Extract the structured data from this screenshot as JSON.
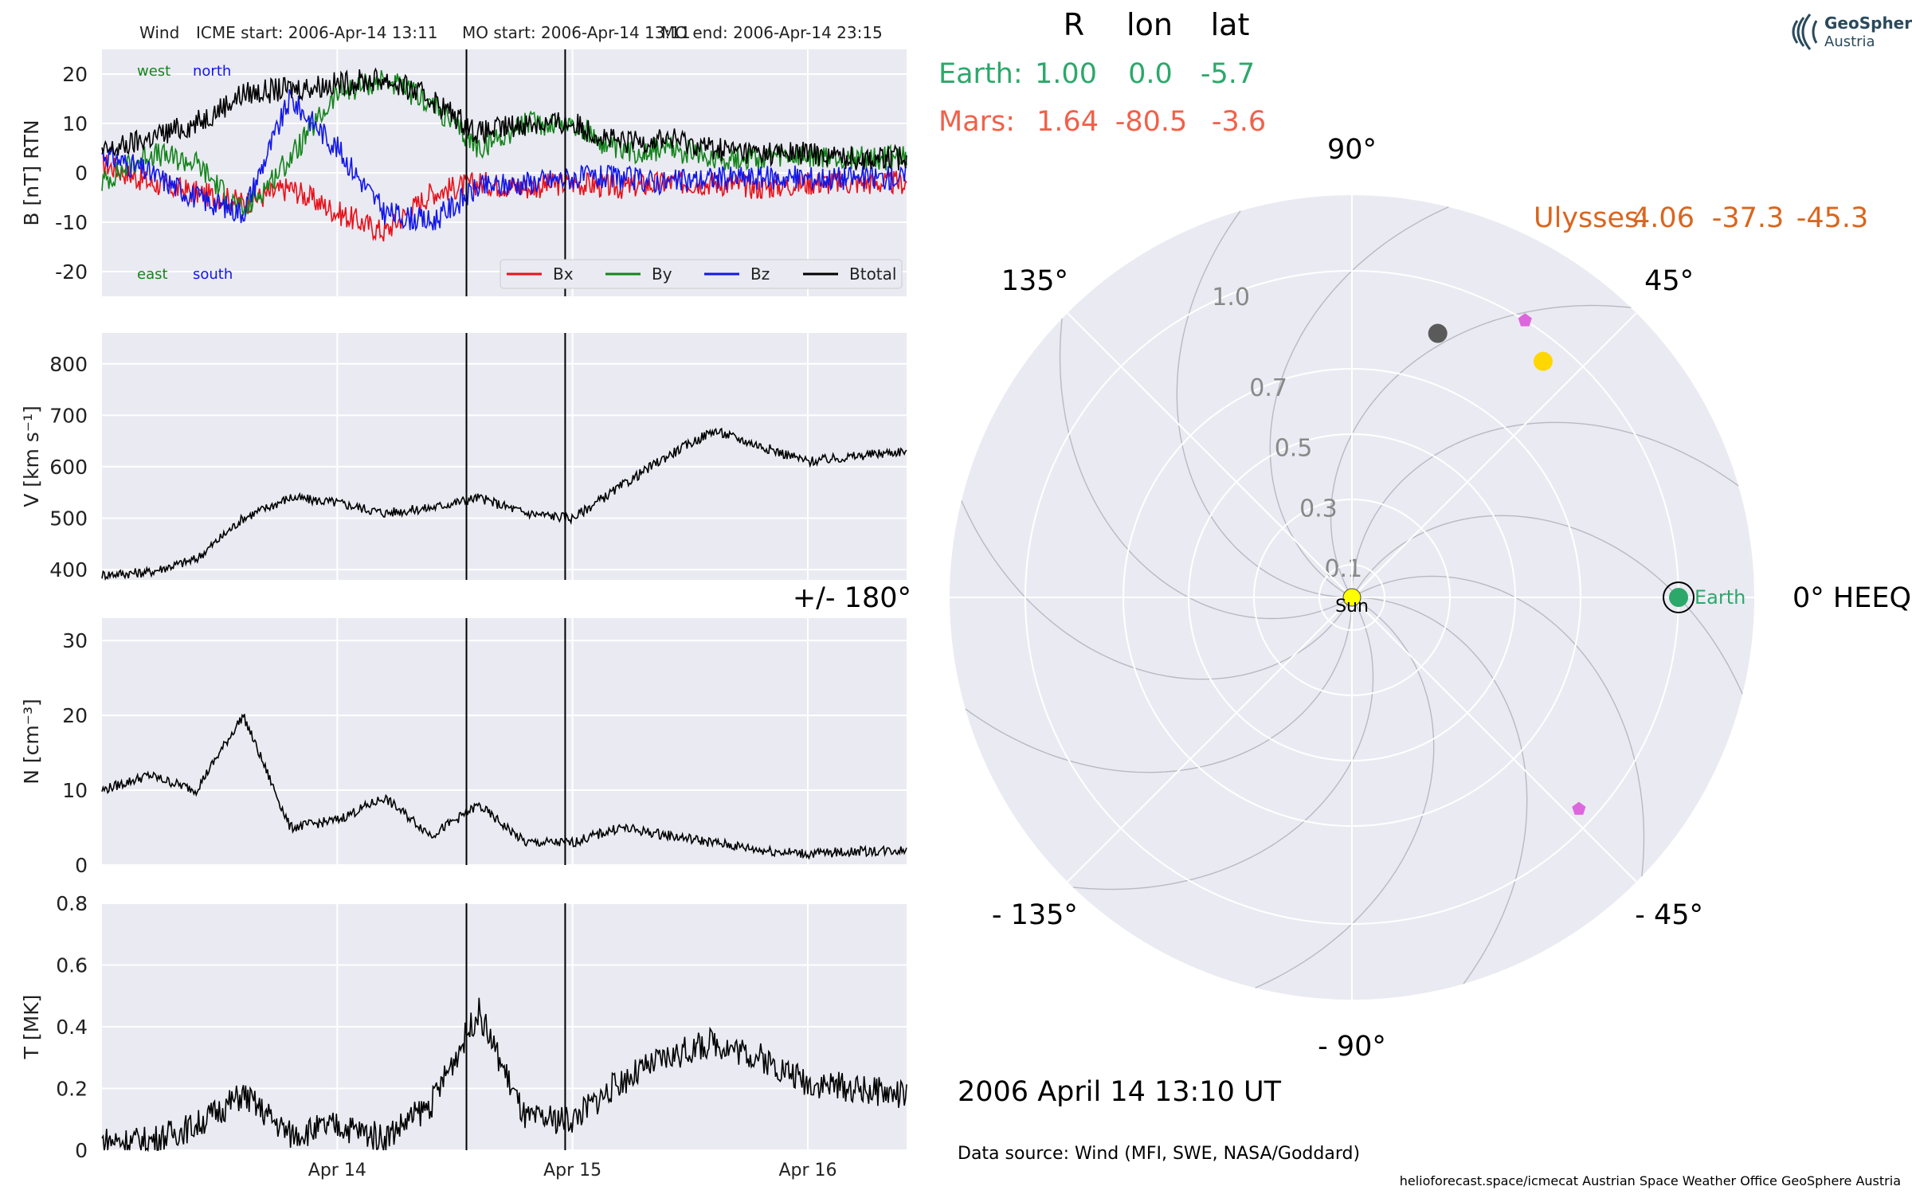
{
  "header": {
    "spacecraft": "Wind",
    "icme_start": "ICME start: 2006-Apr-14 13:11",
    "mo_start": "MO start: 2006-Apr-14 13:11",
    "mo_end": "MO end: 2006-Apr-14 23:15"
  },
  "positions": {
    "columns": [
      "R",
      "lon",
      "lat"
    ],
    "rows": [
      {
        "name": "Earth:",
        "R": "1.00",
        "lon": "0.0",
        "lat": "-5.7",
        "color": "#2ca86b"
      },
      {
        "name": "Mars:",
        "R": "1.64",
        "lon": "-80.5",
        "lat": "-3.6",
        "color": "#f0614a"
      }
    ],
    "ulysses": {
      "label": "Ulysses:",
      "R": "4.06",
      "lon": "-37.3",
      "lat": "-45.3",
      "color": "#d9661f"
    }
  },
  "logo": {
    "line1": "GeoSphere",
    "line2": "Austria"
  },
  "footer": {
    "datetime": "2006 April 14  13:10 UT",
    "data_source": "Data source: Wind (MFI, SWE, NASA/Goddard)",
    "credits": "helioforecast.space/icmecat   Austrian Space Weather Office   GeoSphere Austria"
  },
  "chart_data": [
    {
      "type": "line",
      "ylabel": "B [nT] RTN",
      "ylim": [
        -25,
        25
      ],
      "yticks": [
        -20,
        -10,
        0,
        10,
        20
      ],
      "xrange_days": [
        "2006-04-13 00:00",
        "2006-04-16 10:00"
      ],
      "xticks": [
        "Apr 14",
        "Apr 15",
        "Apr 16"
      ],
      "annotations": {
        "top_left": [
          "west",
          "north"
        ],
        "bottom_left": [
          "east",
          "south"
        ]
      },
      "legend": [
        "Bx",
        "By",
        "Bz",
        "Btotal"
      ],
      "series": [
        {
          "name": "Bx",
          "color": "#e8121b",
          "t": [
            0.0,
            0.2,
            0.4,
            0.6,
            0.8,
            1.0,
            1.2,
            1.4,
            1.6,
            1.8,
            2.0,
            2.2,
            2.4,
            2.6,
            2.8,
            3.0,
            3.2,
            3.4
          ],
          "values": [
            2,
            -2,
            -4,
            -6,
            -3,
            -8,
            -12,
            -4,
            -2,
            -3,
            -2,
            -3,
            -2,
            -2,
            -3,
            -2,
            -2,
            -2
          ]
        },
        {
          "name": "By",
          "color": "#13841b",
          "t": [
            0.0,
            0.2,
            0.4,
            0.6,
            0.8,
            1.0,
            1.2,
            1.4,
            1.6,
            1.8,
            2.0,
            2.2,
            2.4,
            2.6,
            2.8,
            3.0,
            3.2,
            3.4
          ],
          "values": [
            -2,
            4,
            2,
            -8,
            3,
            16,
            19,
            14,
            5,
            10,
            10,
            4,
            5,
            3,
            3,
            3,
            3,
            3
          ]
        },
        {
          "name": "Bz",
          "color": "#1217e8",
          "t": [
            0.0,
            0.2,
            0.4,
            0.6,
            0.8,
            1.0,
            1.2,
            1.4,
            1.6,
            1.8,
            2.0,
            2.2,
            2.4,
            2.6,
            2.8,
            3.0,
            3.2,
            3.4
          ],
          "values": [
            4,
            0,
            -5,
            -8,
            15,
            5,
            -8,
            -10,
            -3,
            -2,
            -1,
            -1,
            -2,
            -1,
            -1,
            -1,
            -1,
            -1
          ]
        },
        {
          "name": "Btotal",
          "color": "#000000",
          "t": [
            0.0,
            0.2,
            0.4,
            0.6,
            0.8,
            1.0,
            1.2,
            1.4,
            1.6,
            1.8,
            2.0,
            2.2,
            2.4,
            2.6,
            2.8,
            3.0,
            3.2,
            3.4
          ],
          "values": [
            4,
            7,
            10,
            16,
            17,
            18,
            19,
            15,
            8,
            10,
            10,
            6,
            7,
            5,
            4,
            4,
            3,
            3
          ]
        }
      ]
    },
    {
      "type": "line",
      "ylabel": "V [km s⁻¹]",
      "ylim": [
        380,
        860
      ],
      "yticks": [
        400,
        500,
        600,
        700,
        800
      ],
      "series": [
        {
          "name": "V",
          "color": "#000000",
          "t": [
            0.0,
            0.2,
            0.4,
            0.6,
            0.8,
            1.0,
            1.2,
            1.4,
            1.6,
            1.8,
            2.0,
            2.2,
            2.4,
            2.6,
            2.8,
            3.0,
            3.2,
            3.4
          ],
          "values": [
            390,
            395,
            420,
            500,
            540,
            530,
            510,
            520,
            540,
            510,
            500,
            560,
            620,
            670,
            640,
            610,
            620,
            630
          ]
        }
      ]
    },
    {
      "type": "line",
      "ylabel": "N [cm⁻³]",
      "ylim": [
        0,
        33
      ],
      "yticks": [
        0,
        10,
        20,
        30
      ],
      "series": [
        {
          "name": "N",
          "color": "#000000",
          "t": [
            0.0,
            0.2,
            0.4,
            0.6,
            0.8,
            1.0,
            1.2,
            1.4,
            1.6,
            1.8,
            2.0,
            2.2,
            2.4,
            2.6,
            2.8,
            3.0,
            3.2,
            3.4
          ],
          "values": [
            10,
            12,
            10,
            20,
            5,
            6,
            9,
            4,
            8,
            3,
            3,
            5,
            4,
            3,
            2,
            1.5,
            1.8,
            2
          ]
        }
      ]
    },
    {
      "type": "line",
      "ylabel": "T [MK]",
      "ylim": [
        0,
        0.8
      ],
      "yticks": [
        0.0,
        0.2,
        0.4,
        0.6,
        0.8
      ],
      "series": [
        {
          "name": "T",
          "color": "#000000",
          "t": [
            0.0,
            0.2,
            0.4,
            0.6,
            0.8,
            1.0,
            1.2,
            1.4,
            1.6,
            1.8,
            2.0,
            2.2,
            2.4,
            2.6,
            2.8,
            3.0,
            3.2,
            3.4
          ],
          "values": [
            0.03,
            0.03,
            0.08,
            0.18,
            0.05,
            0.08,
            0.04,
            0.15,
            0.45,
            0.1,
            0.1,
            0.22,
            0.3,
            0.35,
            0.3,
            0.22,
            0.2,
            0.18
          ]
        }
      ]
    },
    {
      "type": "polar",
      "radial_ticks": [
        "0.1",
        "0.3",
        "0.5",
        "0.7",
        "1.0"
      ],
      "radial_values": [
        0.1,
        0.3,
        0.5,
        0.7,
        1.0
      ],
      "angle_labels": [
        "0° HEEQ",
        "45°",
        "90°",
        "135°",
        "+/- 180°",
        "- 135°",
        "- 90°",
        "- 45°"
      ],
      "bodies": [
        {
          "name": "Sun",
          "r": 0.0,
          "lon": 0,
          "color": "#ffff00"
        },
        {
          "name": "Earth",
          "r": 1.0,
          "lon": 0,
          "color": "#2ca86b"
        },
        {
          "name": "Mars",
          "r": 0.85,
          "lon": 72,
          "color": "#5a5a5a"
        },
        {
          "name": "Jupiter",
          "r": 0.93,
          "lon": 51,
          "color": "#ffd700"
        },
        {
          "name": "Ulysses",
          "r": 1.0,
          "lon": 58,
          "color": "#dd66dd"
        },
        {
          "name": "Ulysses-2",
          "r": 0.95,
          "lon": -43,
          "color": "#dd66dd"
        }
      ]
    }
  ]
}
